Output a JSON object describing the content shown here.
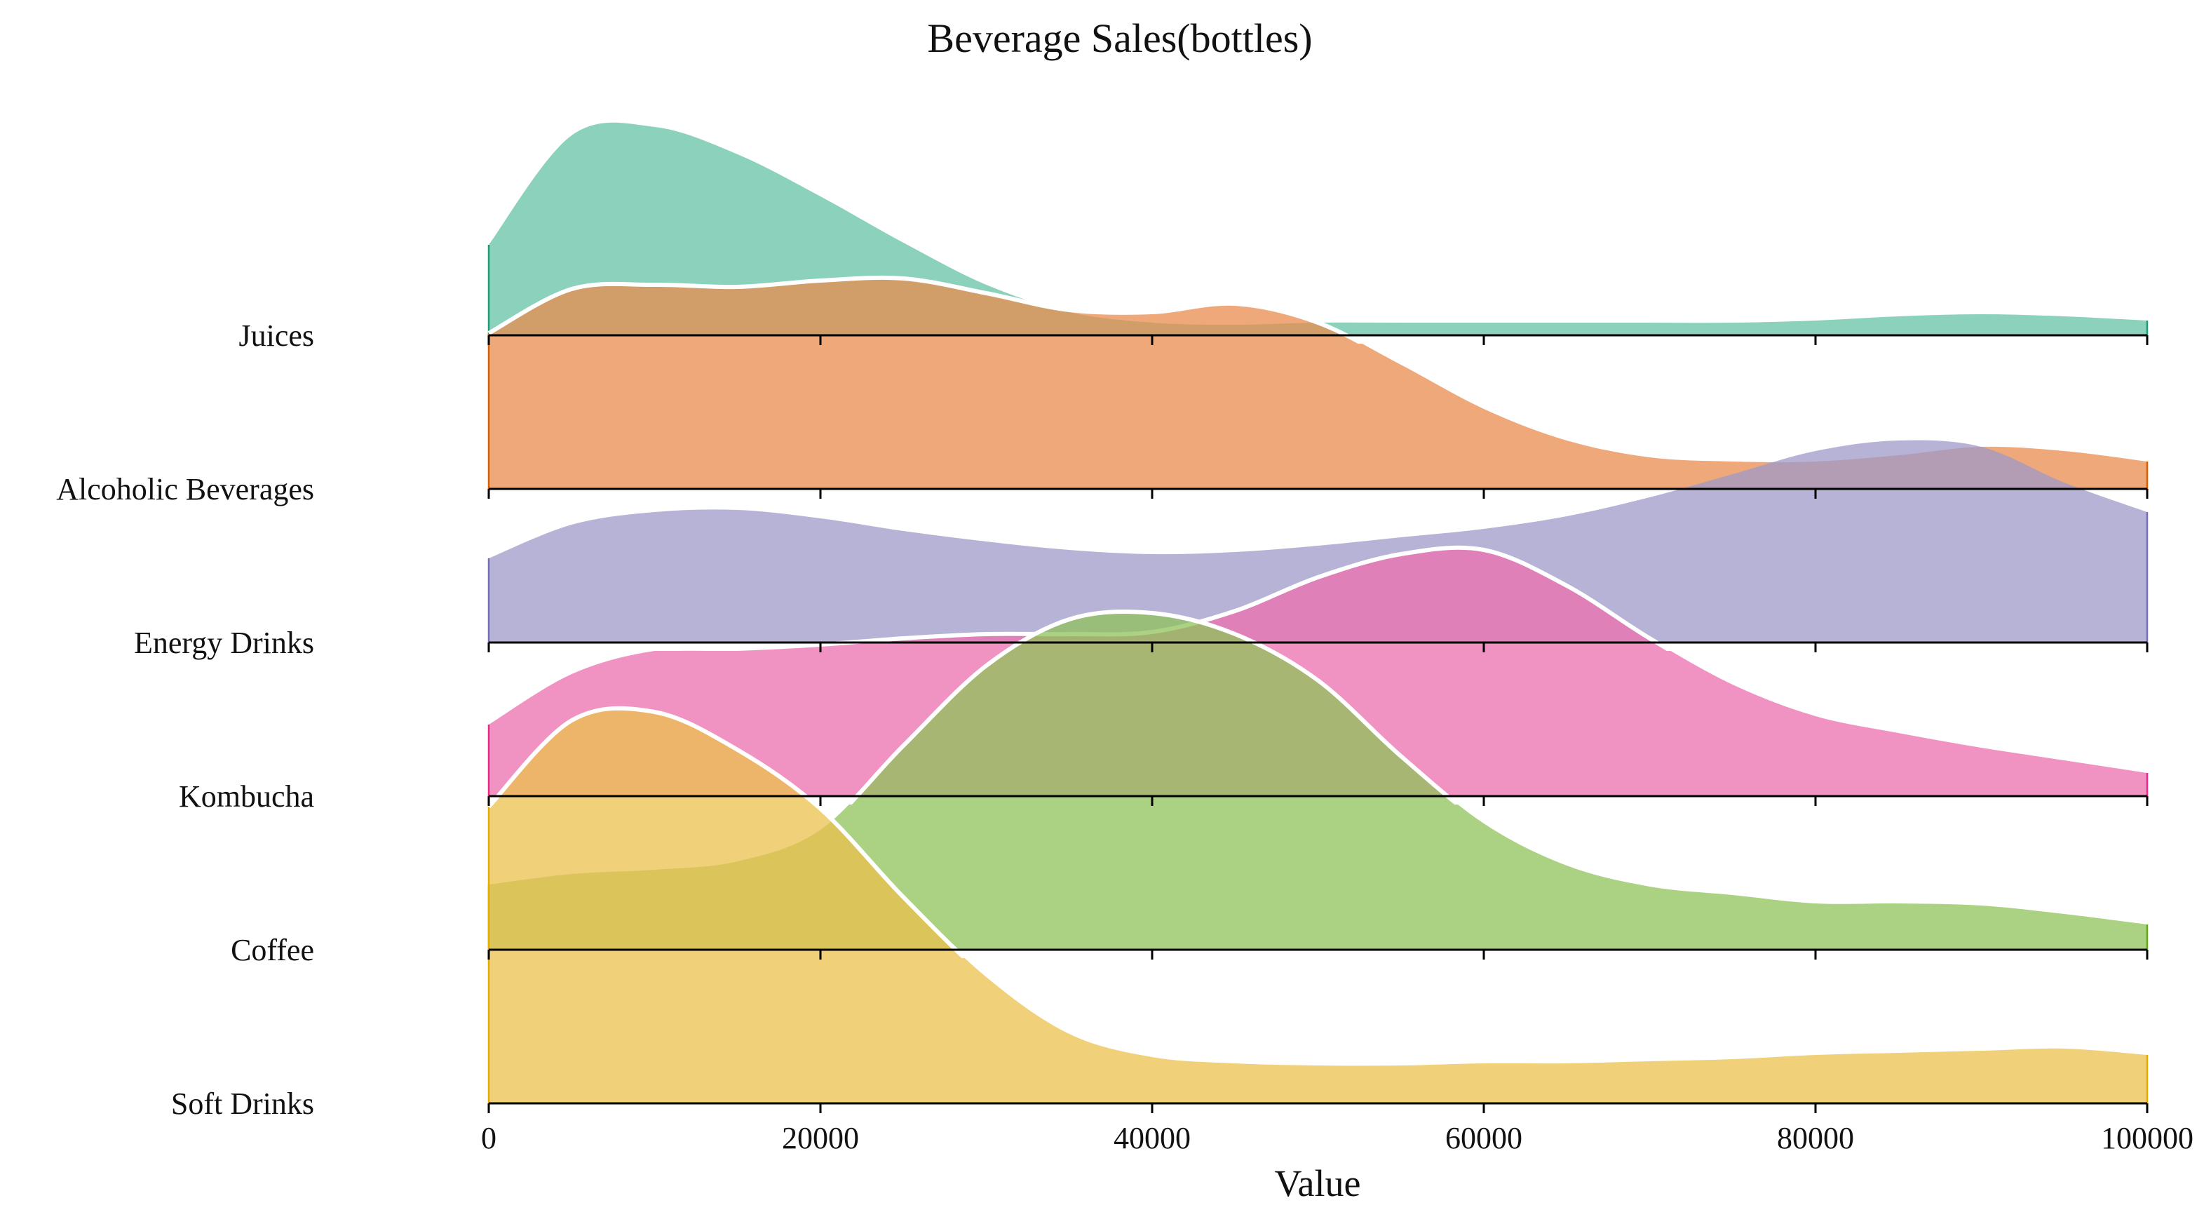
{
  "chart_data": {
    "type": "ridgeline",
    "title": "Beverage Sales(bottles)",
    "xlabel": "Value",
    "ylabel": "",
    "xlim": [
      0,
      100000
    ],
    "xticks": [
      0,
      20000,
      40000,
      60000,
      80000,
      100000
    ],
    "xtick_labels": [
      "0",
      "20000",
      "40000",
      "60000",
      "80000",
      "100000"
    ],
    "grid": false,
    "legend": "none",
    "highlight": "Peak outline drawn in white for the layers whose crest overlaps the row above",
    "x": [
      0,
      5000,
      10000,
      15000,
      20000,
      25000,
      30000,
      35000,
      40000,
      45000,
      50000,
      55000,
      60000,
      65000,
      70000,
      75000,
      80000,
      85000,
      90000,
      95000,
      100000
    ],
    "series": [
      {
        "name": "Juices",
        "color": "#66c2a5",
        "edge": "#1b9e77",
        "outlined": false,
        "values": [
          0.43,
          0.95,
          0.99,
          0.86,
          0.66,
          0.44,
          0.24,
          0.11,
          0.06,
          0.05,
          0.06,
          0.06,
          0.06,
          0.06,
          0.06,
          0.06,
          0.07,
          0.09,
          0.1,
          0.09,
          0.07
        ]
      },
      {
        "name": "Alcoholic Beverages",
        "color": "#e88b4d",
        "edge": "#d95f02",
        "outlined": true,
        "values": [
          0.74,
          0.95,
          0.97,
          0.96,
          0.99,
          1.0,
          0.93,
          0.85,
          0.84,
          0.88,
          0.79,
          0.59,
          0.38,
          0.23,
          0.15,
          0.13,
          0.13,
          0.16,
          0.2,
          0.18,
          0.13
        ]
      },
      {
        "name": "Energy Drinks",
        "color": "#9e9ac8",
        "edge": "#7570b3",
        "outlined": false,
        "values": [
          0.4,
          0.56,
          0.62,
          0.63,
          0.59,
          0.53,
          0.48,
          0.44,
          0.42,
          0.43,
          0.46,
          0.5,
          0.54,
          0.6,
          0.69,
          0.8,
          0.91,
          0.96,
          0.93,
          0.76,
          0.62
        ]
      },
      {
        "name": "Kombucha",
        "color": "#ec6fad",
        "edge": "#e7298a",
        "outlined": true,
        "values": [
          0.34,
          0.58,
          0.69,
          0.7,
          0.72,
          0.75,
          0.77,
          0.77,
          0.78,
          0.88,
          1.04,
          1.15,
          1.17,
          1.0,
          0.75,
          0.53,
          0.38,
          0.3,
          0.23,
          0.17,
          0.11
        ]
      },
      {
        "name": "Coffee",
        "color": "#8fc15a",
        "edge": "#66a61e",
        "outlined": true,
        "values": [
          0.31,
          0.36,
          0.38,
          0.42,
          0.57,
          0.97,
          1.35,
          1.57,
          1.6,
          1.5,
          1.28,
          0.92,
          0.6,
          0.4,
          0.3,
          0.26,
          0.22,
          0.22,
          0.21,
          0.17,
          0.12
        ]
      },
      {
        "name": "Soft Drinks",
        "color": "#ebc04c",
        "edge": "#e6ab02",
        "outlined": true,
        "values": [
          1.41,
          1.82,
          1.86,
          1.68,
          1.4,
          0.98,
          0.6,
          0.33,
          0.22,
          0.19,
          0.18,
          0.18,
          0.19,
          0.19,
          0.2,
          0.21,
          0.23,
          0.24,
          0.25,
          0.26,
          0.23
        ]
      }
    ]
  }
}
